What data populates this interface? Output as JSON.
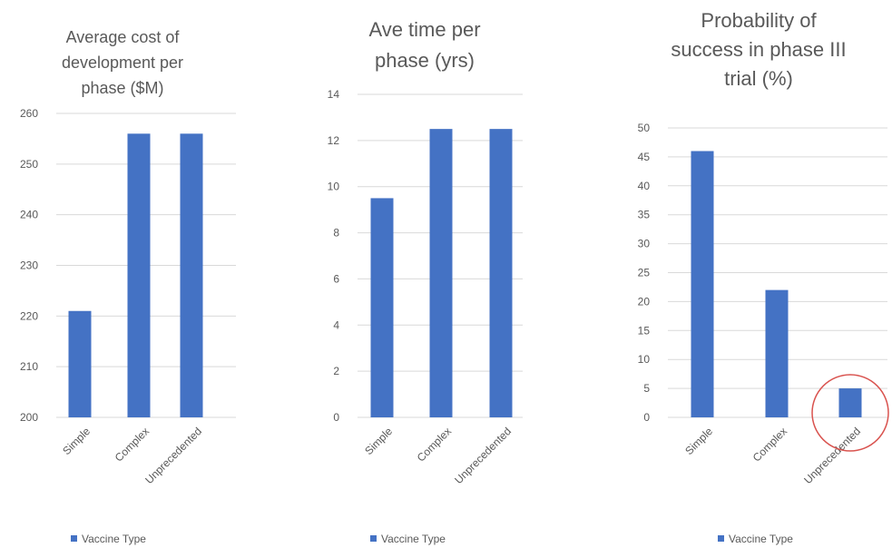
{
  "accent_color": "#4472c4",
  "grid_color": "#d9d9d9",
  "annotation_color": "#d9534f",
  "chart_data": [
    {
      "type": "bar",
      "title_lines": [
        "Average cost of",
        "development  per",
        "phase ($M)"
      ],
      "categories": [
        "Simple",
        "Complex",
        "Unprecedented"
      ],
      "series": [
        {
          "name": "Vaccine Type",
          "values": [
            221,
            256,
            256
          ]
        }
      ],
      "ylim": [
        200,
        260
      ],
      "yticks": [
        "200",
        "210",
        "220",
        "230",
        "240",
        "250",
        "260"
      ],
      "grid": true,
      "legend": "bottom"
    },
    {
      "type": "bar",
      "title_lines": [
        "Ave time per",
        "phase (yrs)"
      ],
      "categories": [
        "Simple",
        "Complex",
        "Unprecedented"
      ],
      "series": [
        {
          "name": "Vaccine Type",
          "values": [
            9.5,
            12.5,
            12.5
          ]
        }
      ],
      "ylim": [
        0,
        14
      ],
      "yticks": [
        "0",
        "2",
        "4",
        "6",
        "8",
        "10",
        "12",
        "14"
      ],
      "grid": true,
      "legend": "bottom"
    },
    {
      "type": "bar",
      "title_lines": [
        "Probability of",
        "success in phase III",
        "trial (%)"
      ],
      "categories": [
        "Simple",
        "Complex",
        "Unprecedented"
      ],
      "series": [
        {
          "name": "Vaccine Type",
          "values": [
            46,
            22,
            5
          ]
        }
      ],
      "ylim": [
        0,
        50
      ],
      "yticks": [
        "0",
        "5",
        "10",
        "15",
        "20",
        "25",
        "30",
        "35",
        "40",
        "45",
        "50"
      ],
      "grid": true,
      "legend": "bottom",
      "highlight_category": "Unprecedented"
    }
  ]
}
